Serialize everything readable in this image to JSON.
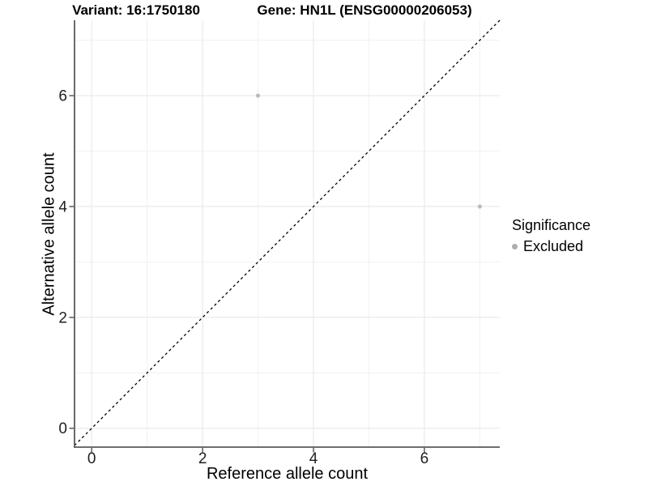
{
  "chart_data": {
    "type": "scatter",
    "title_left": "Variant: 16:1750180",
    "title_right": "Gene: HN1L (ENSG00000206053)",
    "xlabel": "Reference allele count",
    "ylabel": "Alternative allele count",
    "xlim": [
      -0.31,
      7.36
    ],
    "ylim": [
      -0.34,
      7.36
    ],
    "x_major_ticks": [
      0,
      2,
      4,
      6
    ],
    "y_major_ticks": [
      0,
      2,
      4,
      6
    ],
    "x_minor_ticks": [
      1,
      3,
      5,
      7
    ],
    "y_minor_ticks": [
      1,
      3,
      5,
      7
    ],
    "grid": true,
    "points": [
      {
        "x": 3,
        "y": 6,
        "significance": "Excluded"
      },
      {
        "x": 7,
        "y": 4,
        "significance": "Excluded"
      }
    ],
    "identity_line": {
      "slope": 1,
      "intercept": 0,
      "style": "dashed",
      "color": "#000000"
    },
    "colors": {
      "point": "#b9bbbc",
      "grid_major": "#e8e8e8",
      "grid_minor": "#f1f1f1",
      "axis_line": "#5a5a5a",
      "tick_mark": "#5a5a5a",
      "tick_text": "#1f1f1f",
      "background": "#ffffff"
    },
    "legend": {
      "title": "Significance",
      "position": "right",
      "entries": [
        {
          "label": "Excluded",
          "color": "#aeaeae"
        }
      ]
    }
  }
}
